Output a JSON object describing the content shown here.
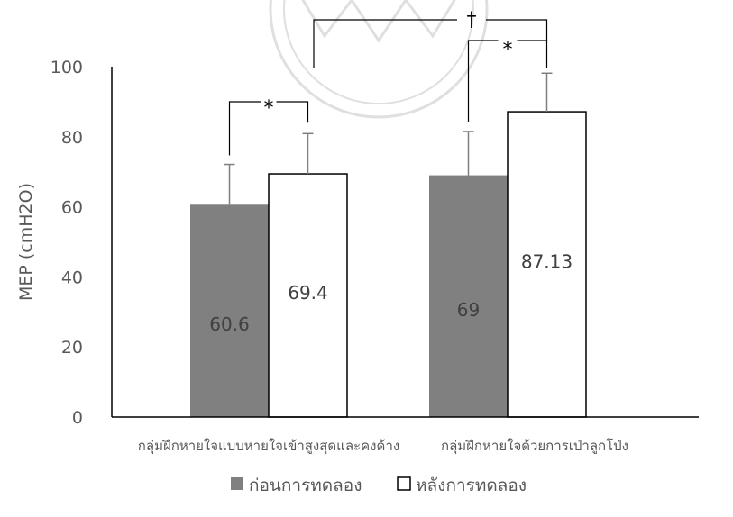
{
  "chart_data": {
    "type": "bar",
    "ylabel": "MEP (cmH2O)",
    "ylim": [
      0,
      100
    ],
    "yticks": [
      0,
      20,
      40,
      60,
      80,
      100
    ],
    "grid": false,
    "legend_position": "bottom",
    "categories": [
      "กลุ่มฝึกหายใจแบบหายใจเข้าสูงสุดและคงค้าง",
      "กลุ่มฝึกหายใจด้วยการเป่าลูกโป่ง"
    ],
    "series": [
      {
        "name": "ก่อนการทดลอง",
        "values": [
          60.6,
          69
        ],
        "error": [
          11.5,
          12.5
        ],
        "labels": [
          "60.6",
          "69"
        ],
        "color": "#808080"
      },
      {
        "name": "หลังการทดลอง",
        "values": [
          69.4,
          87.13
        ],
        "error": [
          11.5,
          11
        ],
        "labels": [
          "69.4",
          "87.13"
        ],
        "color": "#ffffff"
      }
    ],
    "significance": [
      {
        "mark": "*",
        "scope": "within first group"
      },
      {
        "mark": "*",
        "scope": "within second group"
      },
      {
        "mark": "†",
        "scope": "between groups"
      }
    ]
  }
}
